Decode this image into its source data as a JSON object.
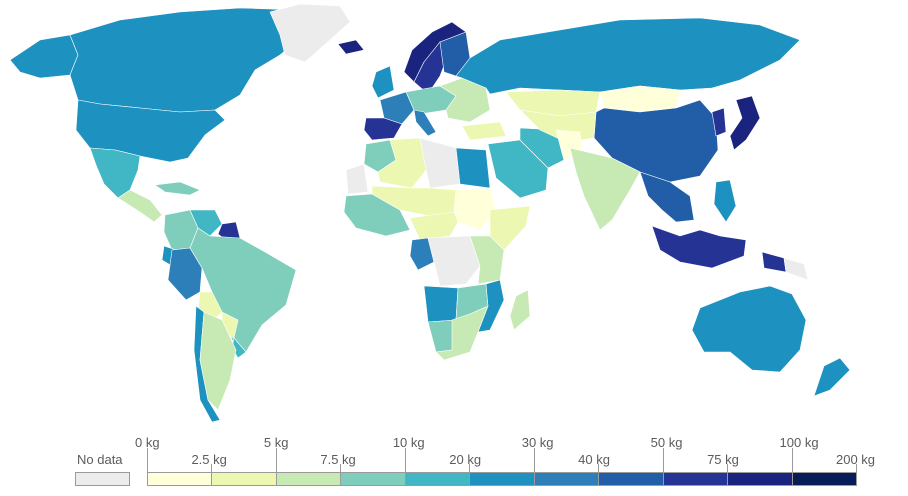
{
  "legend": {
    "no_data_label": "No data",
    "no_data_color": "#ececec",
    "bins": [
      {
        "upper": "",
        "color": "#ffffd9"
      },
      {
        "upper": "",
        "color": "#ecf7b1"
      },
      {
        "upper": "",
        "color": "#c7e9b4"
      },
      {
        "upper": "",
        "color": "#7fcdbb"
      },
      {
        "upper": "",
        "color": "#41b6c4"
      },
      {
        "upper": "",
        "color": "#1d91c0"
      },
      {
        "upper": "",
        "color": "#2c7fb8"
      },
      {
        "upper": "",
        "color": "#225ea8"
      },
      {
        "upper": "",
        "color": "#253494"
      },
      {
        "upper": "",
        "color": "#1a237e"
      },
      {
        "upper": "",
        "color": "#081d58"
      }
    ],
    "upper_labels": [
      "0 kg",
      "5 kg",
      "10 kg",
      "30 kg",
      "50 kg",
      "100 kg"
    ],
    "lower_labels": [
      "2.5 kg",
      "7.5 kg",
      "20 kg",
      "40 kg",
      "75 kg",
      "200 kg"
    ]
  },
  "regions": [
    {
      "id": "greenland",
      "bin": -1
    },
    {
      "id": "canada",
      "bin": 5
    },
    {
      "id": "usa",
      "bin": 5
    },
    {
      "id": "alaska",
      "bin": 5
    },
    {
      "id": "mexico",
      "bin": 4
    },
    {
      "id": "central-america",
      "bin": 2
    },
    {
      "id": "caribbean",
      "bin": 3
    },
    {
      "id": "colombia",
      "bin": 3
    },
    {
      "id": "venezuela",
      "bin": 4
    },
    {
      "id": "guyana",
      "bin": 8
    },
    {
      "id": "peru",
      "bin": 6
    },
    {
      "id": "ecuador",
      "bin": 5
    },
    {
      "id": "brazil",
      "bin": 3
    },
    {
      "id": "bolivia",
      "bin": 1
    },
    {
      "id": "paraguay",
      "bin": 1
    },
    {
      "id": "chile",
      "bin": 5
    },
    {
      "id": "argentina",
      "bin": 2
    },
    {
      "id": "uruguay",
      "bin": 4
    },
    {
      "id": "iceland",
      "bin": 9
    },
    {
      "id": "norway",
      "bin": 9
    },
    {
      "id": "sweden",
      "bin": 8
    },
    {
      "id": "finland",
      "bin": 7
    },
    {
      "id": "uk",
      "bin": 5
    },
    {
      "id": "france",
      "bin": 6
    },
    {
      "id": "iberia",
      "bin": 8
    },
    {
      "id": "central-europe",
      "bin": 3
    },
    {
      "id": "italy",
      "bin": 6
    },
    {
      "id": "eastern-europe",
      "bin": 2
    },
    {
      "id": "russia",
      "bin": 5
    },
    {
      "id": "kazakhstan",
      "bin": 1
    },
    {
      "id": "mongolia",
      "bin": 0
    },
    {
      "id": "china",
      "bin": 7
    },
    {
      "id": "japan",
      "bin": 9
    },
    {
      "id": "korea",
      "bin": 8
    },
    {
      "id": "turkey",
      "bin": 1
    },
    {
      "id": "middle-east",
      "bin": 4
    },
    {
      "id": "iran",
      "bin": 4
    },
    {
      "id": "central-asia",
      "bin": 1
    },
    {
      "id": "afghanistan",
      "bin": 0
    },
    {
      "id": "india",
      "bin": 2
    },
    {
      "id": "southeast-asia",
      "bin": 7
    },
    {
      "id": "indonesia",
      "bin": 8
    },
    {
      "id": "new-guinea",
      "bin": 8
    },
    {
      "id": "png-east",
      "bin": -1
    },
    {
      "id": "philippines",
      "bin": 5
    },
    {
      "id": "australia",
      "bin": 5
    },
    {
      "id": "new-zealand",
      "bin": 5
    },
    {
      "id": "north-africa-west",
      "bin": 3
    },
    {
      "id": "algeria",
      "bin": 1
    },
    {
      "id": "libya",
      "bin": -1
    },
    {
      "id": "egypt",
      "bin": 5
    },
    {
      "id": "west-sahara",
      "bin": -1
    },
    {
      "id": "west-africa",
      "bin": 3
    },
    {
      "id": "sahel",
      "bin": 1
    },
    {
      "id": "sudan",
      "bin": 0
    },
    {
      "id": "horn-africa",
      "bin": 1
    },
    {
      "id": "central-africa",
      "bin": 1
    },
    {
      "id": "drc",
      "bin": -1
    },
    {
      "id": "gabon-congo",
      "bin": 6
    },
    {
      "id": "east-africa",
      "bin": 2
    },
    {
      "id": "angola",
      "bin": 5
    },
    {
      "id": "zambia",
      "bin": 3
    },
    {
      "id": "mozambique",
      "bin": 5
    },
    {
      "id": "southern-africa",
      "bin": 2
    },
    {
      "id": "namibia",
      "bin": 3
    },
    {
      "id": "madagascar",
      "bin": 2
    }
  ]
}
